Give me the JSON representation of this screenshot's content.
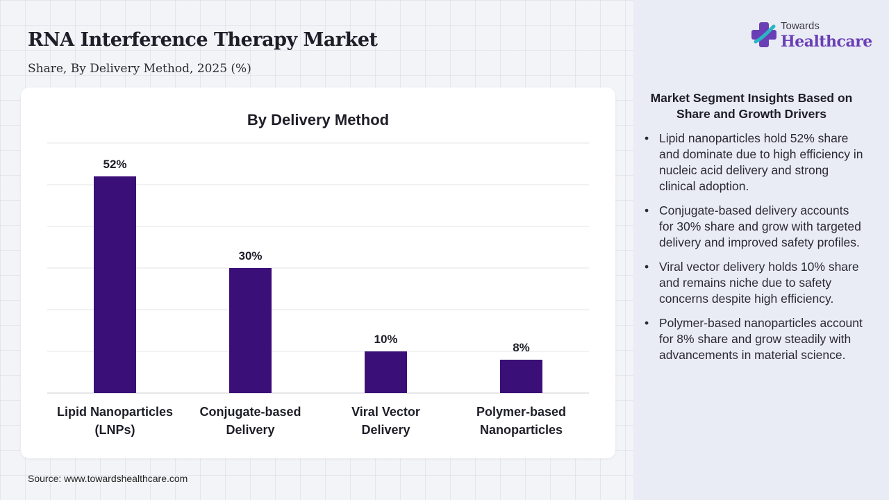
{
  "header": {
    "title": "RNA Interference Therapy Market",
    "subtitle": "Share, By Delivery Method, 2025 (%)"
  },
  "logo": {
    "line1": "Towards",
    "line2": "Healthcare",
    "icon": "plus-cross-icon",
    "colors": {
      "purple": "#6a3fb5",
      "teal": "#2bb5c4"
    }
  },
  "source": "Source: www.towardshealthcare.com",
  "colors": {
    "bar": "#3b0f78",
    "panel": "#e9ecf5"
  },
  "chart_data": {
    "type": "bar",
    "title": "By Delivery Method",
    "categories": [
      [
        "Lipid Nanoparticles",
        "(LNPs)"
      ],
      [
        "Conjugate-based",
        "Delivery"
      ],
      [
        "Viral Vector",
        "Delivery"
      ],
      [
        "Polymer-based",
        "Nanoparticles"
      ]
    ],
    "values": [
      52,
      30,
      10,
      8
    ],
    "data_labels": [
      "52%",
      "30%",
      "10%",
      "8%"
    ],
    "ylim": [
      0,
      60
    ],
    "grid": true,
    "legend": "none"
  },
  "insights": {
    "title": "Market Segment Insights Based on Share and Growth Drivers",
    "items": [
      "Lipid nanoparticles hold 52% share and dominate due to high efficiency in nucleic acid delivery and strong clinical adoption.",
      "Conjugate-based delivery accounts for 30% share and grow with targeted delivery and improved safety profiles.",
      "Viral vector delivery holds 10% share and remains niche due to safety concerns despite high efficiency.",
      "Polymer-based nanoparticles account for 8% share and grow steadily with advancements in material science."
    ]
  }
}
